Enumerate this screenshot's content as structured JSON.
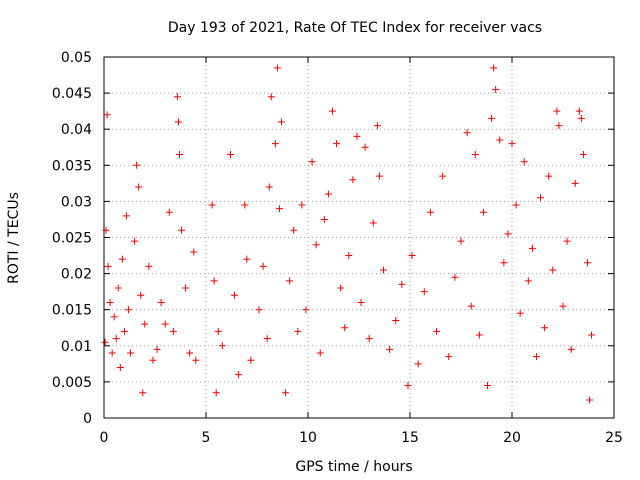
{
  "chart_data": {
    "type": "scatter",
    "title": "Day 193 of 2021, Rate Of TEC Index for receiver vacs",
    "xlabel": "GPS time / hours",
    "ylabel": "ROTI / TECUs",
    "xlim": [
      0,
      25
    ],
    "ylim": [
      0,
      0.05
    ],
    "xticks": [
      0,
      5,
      10,
      15,
      20,
      25
    ],
    "xtick_labels": [
      "0",
      "5",
      "10",
      "15",
      "20",
      "25"
    ],
    "yticks": [
      0,
      0.005,
      0.01,
      0.015,
      0.02,
      0.025,
      0.03,
      0.035,
      0.04,
      0.045,
      0.05
    ],
    "ytick_labels": [
      "0",
      "0.005",
      "0.01",
      "0.015",
      "0.02",
      "0.025",
      "0.03",
      "0.035",
      "0.04",
      "0.045",
      "0.05"
    ],
    "grid": true,
    "marker": "+",
    "color": "#ff0000",
    "series": [
      {
        "name": "vacs",
        "points": [
          [
            0.05,
            0.0105
          ],
          [
            0.1,
            0.026
          ],
          [
            0.15,
            0.042
          ],
          [
            0.2,
            0.021
          ],
          [
            0.3,
            0.016
          ],
          [
            0.4,
            0.009
          ],
          [
            0.5,
            0.014
          ],
          [
            0.6,
            0.011
          ],
          [
            0.7,
            0.018
          ],
          [
            0.8,
            0.007
          ],
          [
            0.9,
            0.022
          ],
          [
            1.0,
            0.012
          ],
          [
            1.1,
            0.028
          ],
          [
            1.2,
            0.015
          ],
          [
            1.3,
            0.009
          ],
          [
            1.5,
            0.0245
          ],
          [
            1.6,
            0.035
          ],
          [
            1.7,
            0.032
          ],
          [
            1.8,
            0.017
          ],
          [
            1.9,
            0.0035
          ],
          [
            2.0,
            0.013
          ],
          [
            2.2,
            0.021
          ],
          [
            2.4,
            0.008
          ],
          [
            2.6,
            0.0095
          ],
          [
            2.8,
            0.016
          ],
          [
            3.0,
            0.013
          ],
          [
            3.2,
            0.0285
          ],
          [
            3.4,
            0.012
          ],
          [
            3.6,
            0.0445
          ],
          [
            3.65,
            0.041
          ],
          [
            3.7,
            0.0365
          ],
          [
            3.8,
            0.026
          ],
          [
            4.0,
            0.018
          ],
          [
            4.2,
            0.009
          ],
          [
            4.4,
            0.023
          ],
          [
            4.5,
            0.008
          ],
          [
            5.3,
            0.0295
          ],
          [
            5.4,
            0.019
          ],
          [
            5.5,
            0.0035
          ],
          [
            5.6,
            0.012
          ],
          [
            5.8,
            0.01
          ],
          [
            6.2,
            0.0365
          ],
          [
            6.4,
            0.017
          ],
          [
            6.6,
            0.006
          ],
          [
            6.9,
            0.0295
          ],
          [
            7.0,
            0.022
          ],
          [
            7.2,
            0.008
          ],
          [
            7.6,
            0.015
          ],
          [
            7.8,
            0.021
          ],
          [
            8.0,
            0.011
          ],
          [
            8.1,
            0.032
          ],
          [
            8.2,
            0.0445
          ],
          [
            8.4,
            0.038
          ],
          [
            8.5,
            0.0485
          ],
          [
            8.6,
            0.029
          ],
          [
            8.7,
            0.041
          ],
          [
            8.9,
            0.0035
          ],
          [
            9.1,
            0.019
          ],
          [
            9.3,
            0.026
          ],
          [
            9.5,
            0.012
          ],
          [
            9.7,
            0.0295
          ],
          [
            9.9,
            0.015
          ],
          [
            10.2,
            0.0355
          ],
          [
            10.4,
            0.024
          ],
          [
            10.6,
            0.009
          ],
          [
            10.8,
            0.0275
          ],
          [
            11.0,
            0.031
          ],
          [
            11.2,
            0.0425
          ],
          [
            11.4,
            0.038
          ],
          [
            11.6,
            0.018
          ],
          [
            11.8,
            0.0125
          ],
          [
            12.0,
            0.0225
          ],
          [
            12.2,
            0.033
          ],
          [
            12.4,
            0.039
          ],
          [
            12.6,
            0.016
          ],
          [
            12.8,
            0.0375
          ],
          [
            13.0,
            0.011
          ],
          [
            13.2,
            0.027
          ],
          [
            13.4,
            0.0405
          ],
          [
            13.5,
            0.0335
          ],
          [
            13.7,
            0.0205
          ],
          [
            14.0,
            0.0095
          ],
          [
            14.3,
            0.0135
          ],
          [
            14.6,
            0.0185
          ],
          [
            14.9,
            0.0045
          ],
          [
            15.1,
            0.0225
          ],
          [
            15.4,
            0.0075
          ],
          [
            15.7,
            0.0175
          ],
          [
            16.0,
            0.0285
          ],
          [
            16.3,
            0.012
          ],
          [
            16.6,
            0.0335
          ],
          [
            16.9,
            0.0085
          ],
          [
            17.2,
            0.0195
          ],
          [
            17.5,
            0.0245
          ],
          [
            17.8,
            0.0395
          ],
          [
            18.0,
            0.0155
          ],
          [
            18.2,
            0.0365
          ],
          [
            18.4,
            0.0115
          ],
          [
            18.6,
            0.0285
          ],
          [
            18.8,
            0.0045
          ],
          [
            19.0,
            0.0415
          ],
          [
            19.1,
            0.0485
          ],
          [
            19.2,
            0.0455
          ],
          [
            19.4,
            0.0385
          ],
          [
            19.6,
            0.0215
          ],
          [
            19.8,
            0.0255
          ],
          [
            20.0,
            0.038
          ],
          [
            20.2,
            0.0295
          ],
          [
            20.4,
            0.0145
          ],
          [
            20.6,
            0.0355
          ],
          [
            20.8,
            0.019
          ],
          [
            21.0,
            0.0235
          ],
          [
            21.2,
            0.0085
          ],
          [
            21.4,
            0.0305
          ],
          [
            21.6,
            0.0125
          ],
          [
            21.8,
            0.0335
          ],
          [
            22.0,
            0.0205
          ],
          [
            22.2,
            0.0425
          ],
          [
            22.3,
            0.0405
          ],
          [
            22.5,
            0.0155
          ],
          [
            22.7,
            0.0245
          ],
          [
            22.9,
            0.0095
          ],
          [
            23.1,
            0.0325
          ],
          [
            23.3,
            0.0425
          ],
          [
            23.4,
            0.0415
          ],
          [
            23.5,
            0.0365
          ],
          [
            23.7,
            0.0215
          ],
          [
            23.8,
            0.0025
          ],
          [
            23.9,
            0.0115
          ]
        ]
      }
    ]
  }
}
